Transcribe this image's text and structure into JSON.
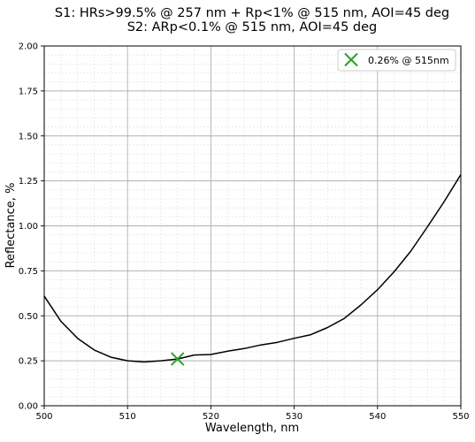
{
  "chart_data": {
    "type": "line",
    "title_lines": [
      "S1: HRs>99.5% @ 257 nm + Rp<1% @ 515 nm, AOI=45 deg",
      "S2: ARp<0.1% @ 515 nm, AOI=45 deg"
    ],
    "xlabel": "Wavelength, nm",
    "ylabel": "Reflectance, %",
    "xlim": [
      500,
      550
    ],
    "ylim": [
      0.0,
      2.0
    ],
    "x_ticks": [
      500,
      510,
      520,
      530,
      540,
      550
    ],
    "x_tick_labels": [
      "500",
      "510",
      "520",
      "530",
      "540",
      "550"
    ],
    "y_ticks": [
      0.0,
      0.25,
      0.5,
      0.75,
      1.0,
      1.25,
      1.5,
      1.75,
      2.0
    ],
    "y_tick_labels": [
      "0.00",
      "0.25",
      "0.50",
      "0.75",
      "1.00",
      "1.25",
      "1.50",
      "1.75",
      "2.00"
    ],
    "grid": true,
    "minor_grid": true,
    "legend_position": "top-right",
    "series": [
      {
        "color": "#000000",
        "x": [
          500,
          502,
          504,
          506,
          508,
          510,
          512,
          514,
          516,
          518,
          520,
          522,
          524,
          526,
          528,
          530,
          532,
          534,
          536,
          538,
          540,
          542,
          544,
          546,
          548,
          550
        ],
        "y": [
          0.61,
          0.47,
          0.375,
          0.31,
          0.27,
          0.25,
          0.243,
          0.25,
          0.26,
          0.282,
          0.285,
          0.303,
          0.318,
          0.338,
          0.353,
          0.375,
          0.395,
          0.435,
          0.485,
          0.56,
          0.645,
          0.745,
          0.86,
          0.995,
          1.135,
          1.285
        ]
      }
    ],
    "markers": [
      {
        "x": 516,
        "y": 0.26,
        "symbol": "x",
        "color": "#2ca02c",
        "legend_label": "0.26% @ 515nm"
      }
    ]
  }
}
